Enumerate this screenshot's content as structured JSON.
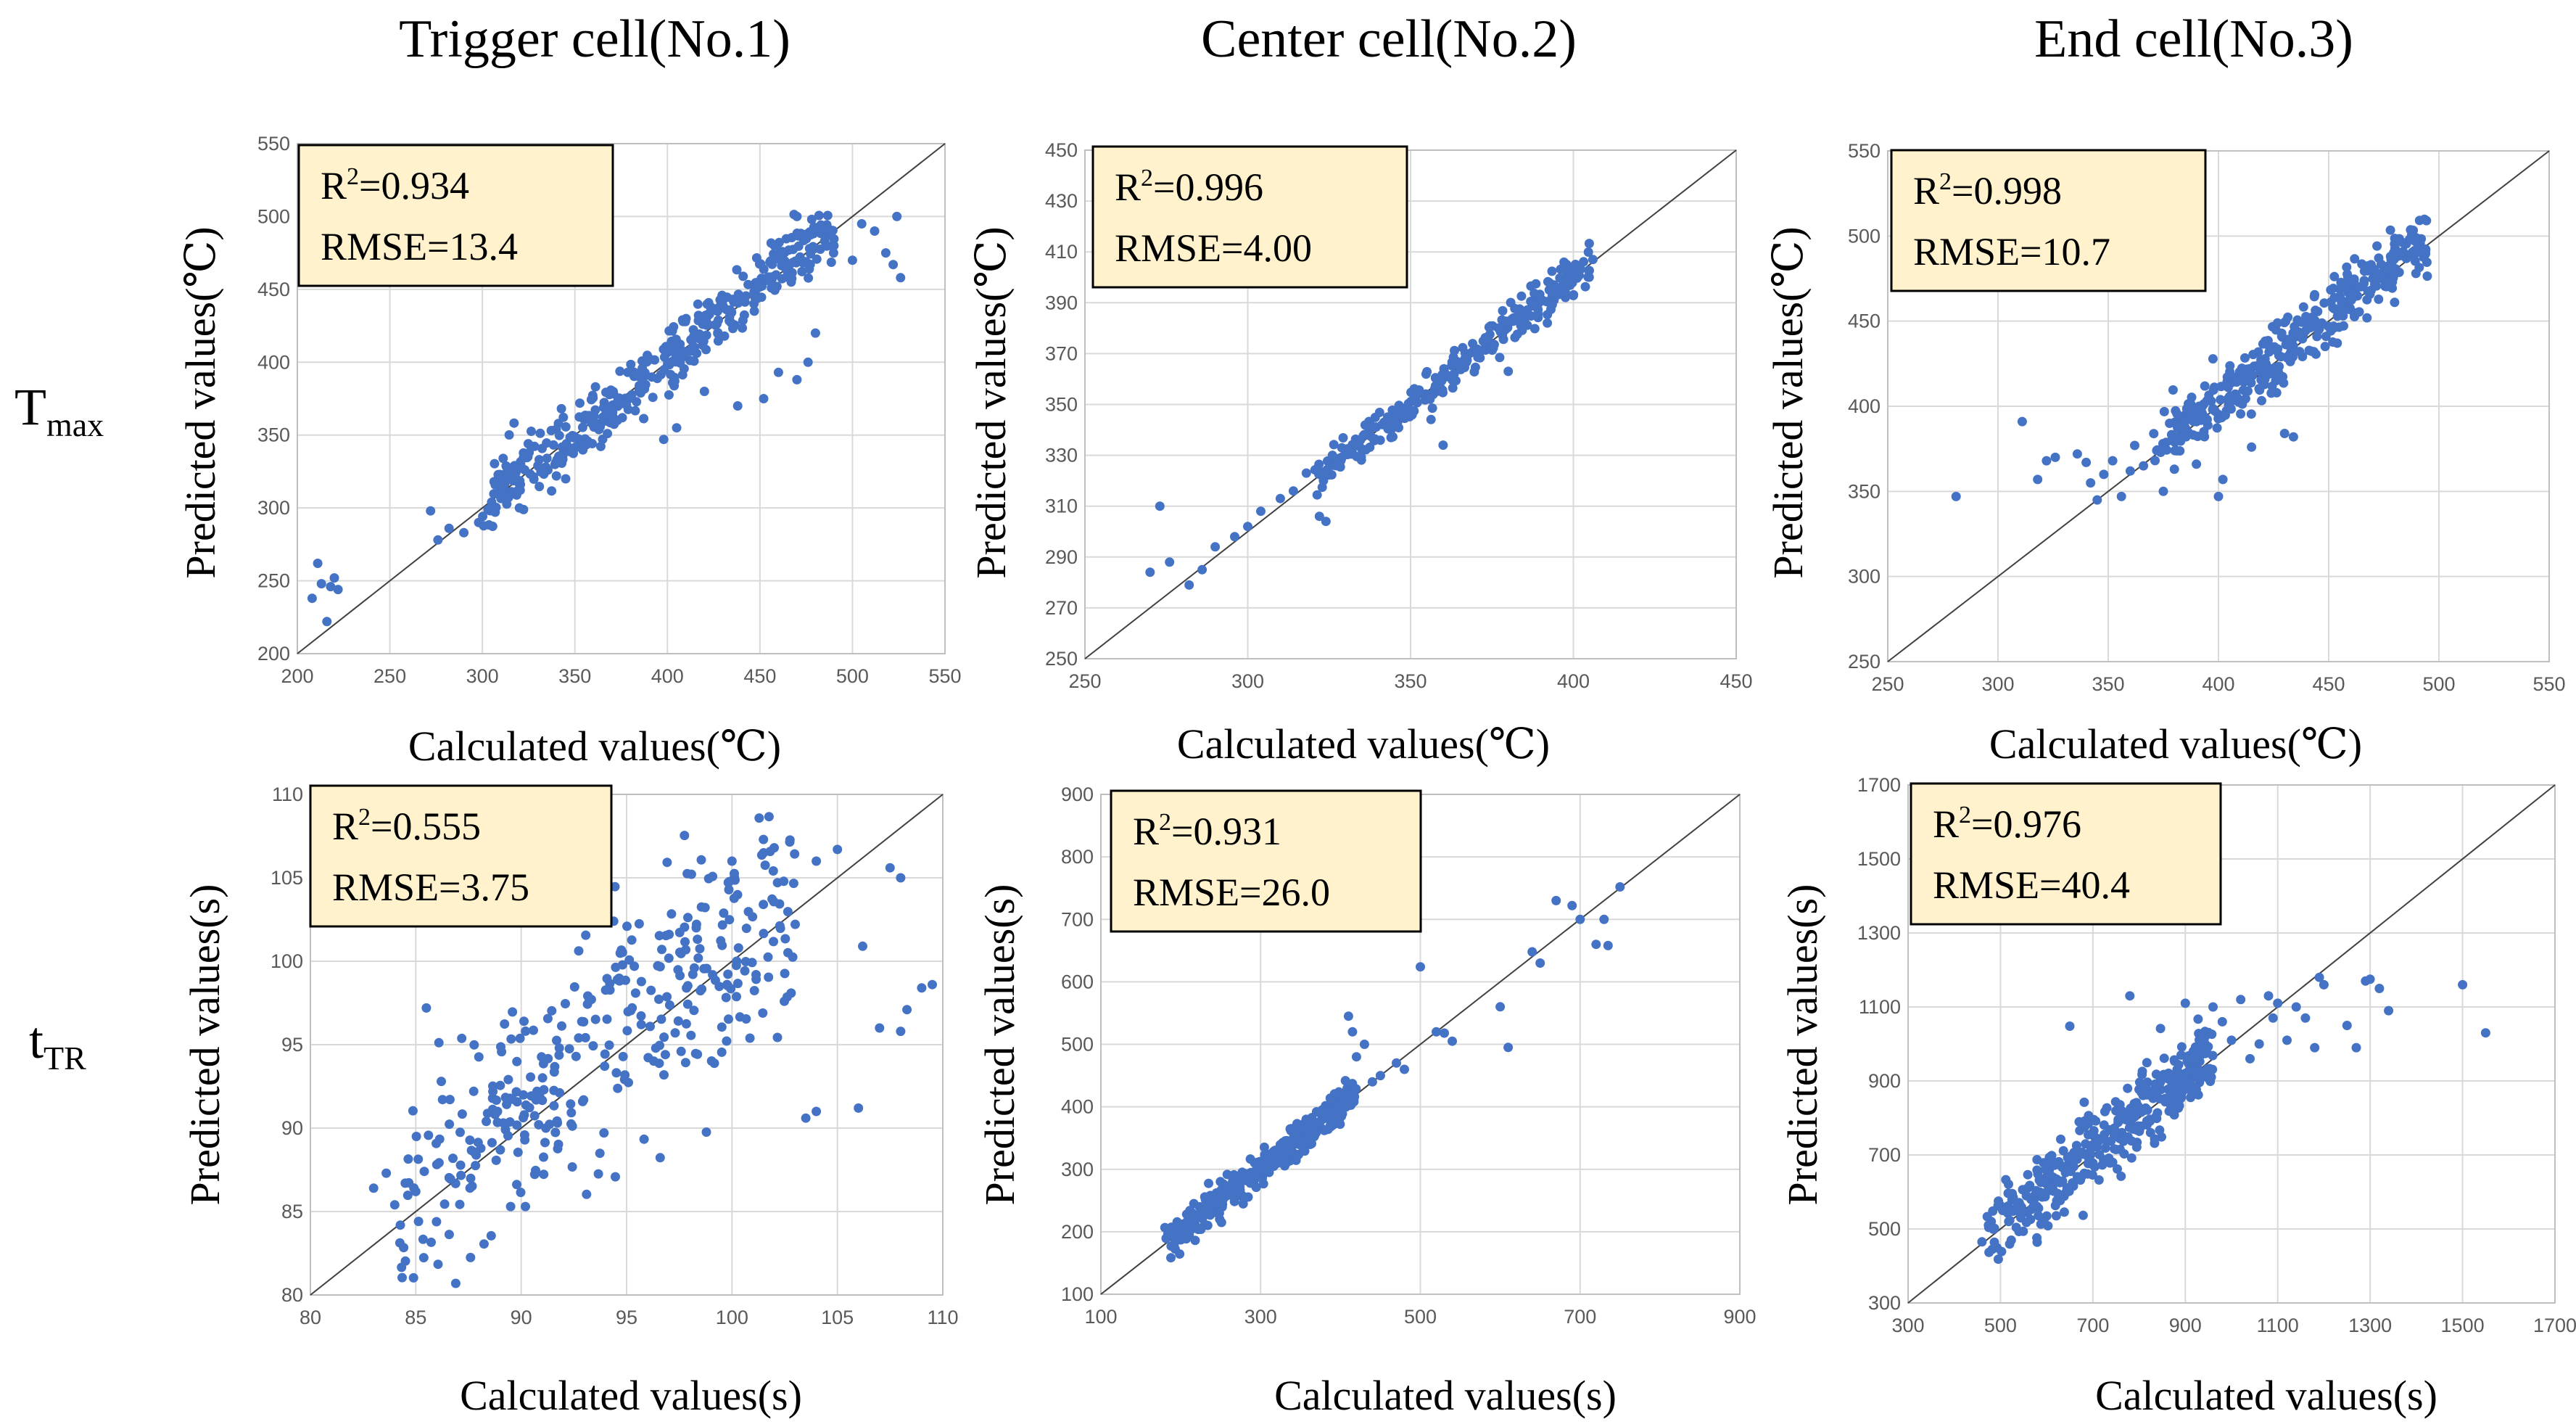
{
  "figure": {
    "column_titles": [
      "Trigger cell(No.1)",
      "Center cell(No.2)",
      "End cell(No.3)"
    ],
    "row_labels": [
      {
        "main": "T",
        "sub": "max"
      },
      {
        "main": "t",
        "sub": "TR"
      }
    ],
    "colors": {
      "point": "#4472c4",
      "stat_box": "#fff2cc",
      "grid": "#d9d9d9",
      "diagonal": "#404040"
    }
  },
  "chart_data": [
    {
      "type": "scatter",
      "id": "tmax-trigger",
      "row": 0,
      "col": 0,
      "xlabel": "Calculated values(℃)",
      "ylabel": "Predicted values(℃)",
      "xlim": [
        200,
        550
      ],
      "ylim": [
        200,
        550
      ],
      "xstep": 50,
      "ystep": 50,
      "r2": "0.934",
      "rmse_label": "RMSE=13.4",
      "cloud": {
        "n": 420,
        "lo": 300,
        "hi": 490,
        "noise": 11,
        "bias": 2,
        "seed": 11
      },
      "points": [
        [
          208,
          238
        ],
        [
          211,
          262
        ],
        [
          213,
          248
        ],
        [
          216,
          222
        ],
        [
          218,
          246
        ],
        [
          220,
          252
        ],
        [
          222,
          244
        ],
        [
          272,
          298
        ],
        [
          276,
          278
        ],
        [
          282,
          286
        ],
        [
          290,
          283
        ],
        [
          298,
          290
        ],
        [
          305,
          304
        ],
        [
          312,
          312
        ],
        [
          320,
          300
        ],
        [
          330,
          329
        ],
        [
          340,
          322
        ],
        [
          345,
          320
        ],
        [
          398,
          347
        ],
        [
          405,
          355
        ],
        [
          420,
          380
        ],
        [
          438,
          370
        ],
        [
          452,
          375
        ],
        [
          460,
          393
        ],
        [
          470,
          388
        ],
        [
          476,
          400
        ],
        [
          480,
          420
        ],
        [
          490,
          480
        ],
        [
          500,
          470
        ],
        [
          505,
          495
        ],
        [
          512,
          490
        ],
        [
          518,
          475
        ],
        [
          522,
          467
        ],
        [
          524,
          500
        ],
        [
          526,
          458
        ],
        [
          470,
          500
        ],
        [
          478,
          498
        ]
      ]
    },
    {
      "type": "scatter",
      "id": "tmax-center",
      "row": 0,
      "col": 1,
      "xlabel": "Calculated values(℃)",
      "ylabel": "Predicted values(℃)",
      "xlim": [
        250,
        450
      ],
      "ylim": [
        250,
        450
      ],
      "xstep": 50,
      "ystep": 20,
      "r2": "0.996",
      "rmse_label": "RMSE=4.00",
      "cloud": {
        "n": 300,
        "lo": 320,
        "hi": 405,
        "noise": 3.5,
        "bias": 0.5,
        "seed": 23
      },
      "points": [
        [
          270,
          284
        ],
        [
          273,
          310
        ],
        [
          276,
          288
        ],
        [
          282,
          279
        ],
        [
          286,
          285
        ],
        [
          290,
          294
        ],
        [
          296,
          298
        ],
        [
          300,
          302
        ],
        [
          304,
          308
        ],
        [
          310,
          313
        ],
        [
          314,
          316
        ],
        [
          318,
          323
        ],
        [
          322,
          306
        ],
        [
          324,
          304
        ],
        [
          326,
          330
        ],
        [
          330,
          332
        ],
        [
          344,
          337
        ],
        [
          360,
          334
        ],
        [
          380,
          363
        ],
        [
          392,
          382
        ],
        [
          398,
          398
        ],
        [
          402,
          404
        ],
        [
          406,
          407
        ]
      ]
    },
    {
      "type": "scatter",
      "id": "tmax-end",
      "row": 0,
      "col": 2,
      "xlabel": "Calculated values(℃)",
      "ylabel": "Predicted values(℃)",
      "xlim": [
        250,
        550
      ],
      "ylim": [
        250,
        550
      ],
      "xstep": 50,
      "ystep": 50,
      "r2": "0.998",
      "rmse_label": "RMSE=10.7",
      "cloud": {
        "n": 380,
        "lo": 370,
        "hi": 495,
        "noise": 9,
        "bias": 3,
        "seed": 37
      },
      "points": [
        [
          281,
          347
        ],
        [
          311,
          391
        ],
        [
          318,
          357
        ],
        [
          322,
          368
        ],
        [
          326,
          370
        ],
        [
          336,
          372
        ],
        [
          340,
          367
        ],
        [
          342,
          355
        ],
        [
          345,
          345
        ],
        [
          348,
          360
        ],
        [
          352,
          368
        ],
        [
          356,
          347
        ],
        [
          360,
          362
        ],
        [
          362,
          377
        ],
        [
          366,
          365
        ],
        [
          372,
          374
        ],
        [
          375,
          350
        ],
        [
          380,
          363
        ],
        [
          385,
          395
        ],
        [
          390,
          366
        ],
        [
          400,
          347
        ],
        [
          402,
          357
        ],
        [
          415,
          376
        ],
        [
          430,
          384
        ],
        [
          434,
          382
        ],
        [
          470,
          475
        ],
        [
          480,
          480
        ],
        [
          488,
          488
        ],
        [
          494,
          492
        ]
      ]
    },
    {
      "type": "scatter",
      "id": "ttr-trigger",
      "row": 1,
      "col": 0,
      "xlabel": "Calculated values(s)",
      "ylabel": "Predicted values(s)",
      "xlim": [
        80,
        110
      ],
      "ylim": [
        80,
        110
      ],
      "xstep": 5,
      "ystep": 5,
      "r2": "0.555",
      "rmse_label": "RMSE=3.75",
      "cloud": {
        "n": 360,
        "lo": 84,
        "hi": 103,
        "noise": 3.6,
        "bias": 1.2,
        "seed": 53
      },
      "points": [
        [
          83,
          86.4
        ],
        [
          83.6,
          87.3
        ],
        [
          84,
          85.4
        ],
        [
          84.5,
          86.7
        ],
        [
          85,
          86.2
        ],
        [
          85.5,
          97.2
        ],
        [
          89.5,
          85.3
        ],
        [
          90.2,
          85.3
        ],
        [
          100,
          106
        ],
        [
          101.5,
          106.5
        ],
        [
          102,
          106.8
        ],
        [
          104,
          106
        ],
        [
          105,
          106.7
        ],
        [
          106,
          91.2
        ],
        [
          106.2,
          100.9
        ],
        [
          107,
          96
        ],
        [
          107.5,
          105.6
        ],
        [
          108,
          105
        ],
        [
          108,
          95.8
        ],
        [
          108.3,
          97.1
        ],
        [
          109,
          98.4
        ],
        [
          109.5,
          98.6
        ],
        [
          104,
          91
        ],
        [
          103.5,
          90.6
        ]
      ]
    },
    {
      "type": "scatter",
      "id": "ttr-center",
      "row": 1,
      "col": 1,
      "xlabel": "Calculated values(s)",
      "ylabel": "Predicted values(s)",
      "xlim": [
        100,
        900
      ],
      "ylim": [
        100,
        900
      ],
      "xstep": 200,
      "ystep": 100,
      "r2": "0.931",
      "rmse_label": "RMSE=26.0",
      "cloud": {
        "n": 380,
        "lo": 180,
        "hi": 420,
        "noise": 14,
        "bias": 2,
        "seed": 71
      },
      "points": [
        [
          410,
          545
        ],
        [
          415,
          520
        ],
        [
          420,
          480
        ],
        [
          430,
          500
        ],
        [
          440,
          440
        ],
        [
          450,
          450
        ],
        [
          470,
          470
        ],
        [
          480,
          460
        ],
        [
          500,
          624
        ],
        [
          520,
          520
        ],
        [
          530,
          518
        ],
        [
          540,
          505
        ],
        [
          600,
          560
        ],
        [
          610,
          495
        ],
        [
          640,
          648
        ],
        [
          650,
          630
        ],
        [
          670,
          730
        ],
        [
          690,
          722
        ],
        [
          700,
          700
        ],
        [
          720,
          660
        ],
        [
          730,
          700
        ],
        [
          735,
          658
        ],
        [
          750,
          752
        ]
      ]
    },
    {
      "type": "scatter",
      "id": "ttr-end",
      "row": 1,
      "col": 2,
      "xlabel": "Calculated values(s)",
      "ylabel": "Predicted values(s)",
      "xlim": [
        300,
        1700
      ],
      "ylim": [
        300,
        1700
      ],
      "xstep": 200,
      "ystep": 200,
      "r2": "0.976",
      "rmse_label": "RMSE=40.4",
      "cloud": {
        "n": 400,
        "lo": 470,
        "hi": 960,
        "noise": 50,
        "bias": 10,
        "seed": 89
      },
      "points": [
        [
          460,
          465
        ],
        [
          480,
          520
        ],
        [
          650,
          1048
        ],
        [
          780,
          1130
        ],
        [
          900,
          1110
        ],
        [
          960,
          1100
        ],
        [
          980,
          1060
        ],
        [
          1000,
          1010
        ],
        [
          1020,
          1120
        ],
        [
          1040,
          960
        ],
        [
          1060,
          1000
        ],
        [
          1080,
          1130
        ],
        [
          1090,
          1070
        ],
        [
          1100,
          1110
        ],
        [
          1120,
          1010
        ],
        [
          1140,
          1100
        ],
        [
          1160,
          1070
        ],
        [
          1180,
          990
        ],
        [
          1190,
          1180
        ],
        [
          1200,
          1160
        ],
        [
          1250,
          1050
        ],
        [
          1270,
          990
        ],
        [
          1290,
          1170
        ],
        [
          1300,
          1175
        ],
        [
          1320,
          1150
        ],
        [
          1340,
          1090
        ],
        [
          1500,
          1160
        ],
        [
          1550,
          1030
        ]
      ]
    }
  ]
}
